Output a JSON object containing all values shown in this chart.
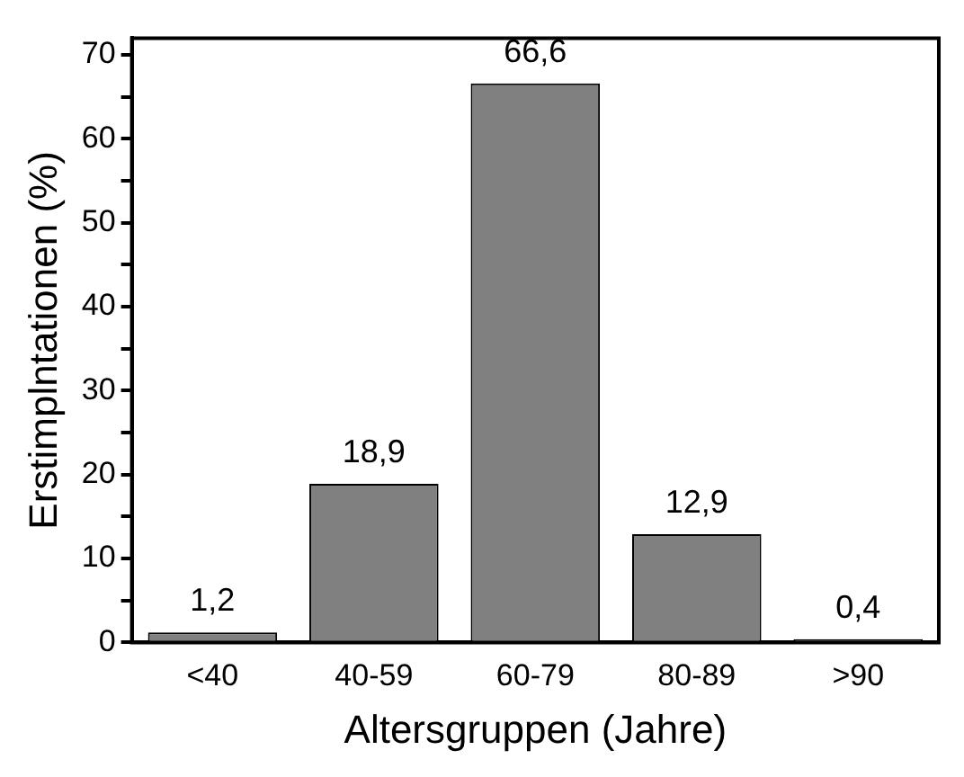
{
  "chart_data": {
    "type": "bar",
    "xlabel": "Altersgruppen (Jahre)",
    "ylabel": "Erstimplntationen (%)",
    "categories": [
      "<40",
      "40-59",
      "60-79",
      "80-89",
      ">90"
    ],
    "values": [
      1.2,
      18.9,
      66.6,
      12.9,
      0.4
    ],
    "value_labels": [
      "1,2",
      "18,9",
      "66,6",
      "12,9",
      "0,4"
    ],
    "color": "#808080",
    "ylim": [
      0,
      72
    ],
    "yticks": [
      0,
      {
        "value": 5,
        "label": null
      },
      10,
      {
        "value": 15,
        "label": null
      },
      20,
      {
        "value": 25,
        "label": null
      },
      30,
      {
        "value": 35,
        "label": null
      },
      40,
      {
        "value": 45,
        "label": null
      },
      50,
      {
        "value": 55,
        "label": null
      },
      60,
      {
        "value": 65,
        "label": null
      },
      70
    ],
    "grid": false,
    "legend": false
  }
}
